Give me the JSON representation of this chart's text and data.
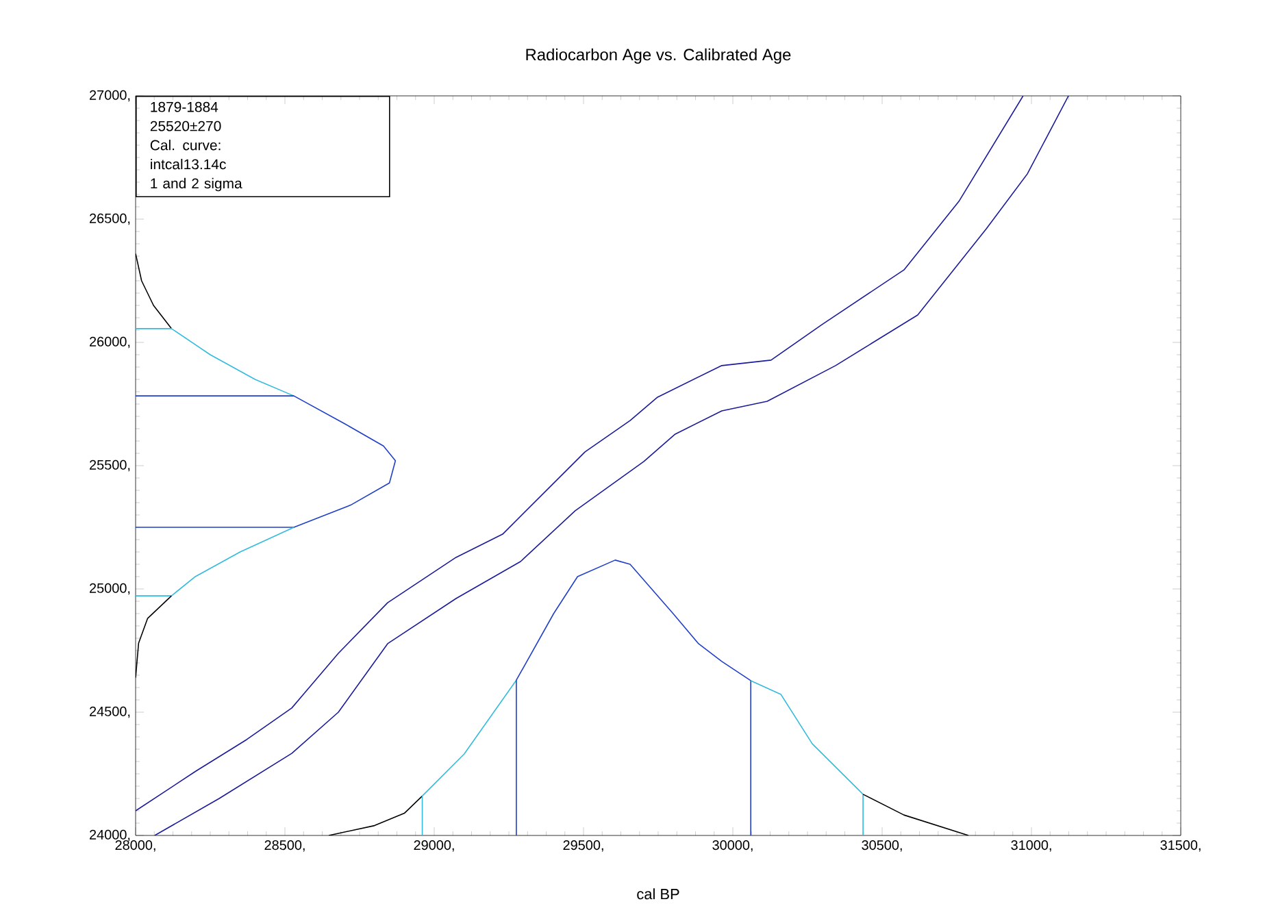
{
  "chart_data": {
    "type": "line",
    "title": "Radiocarbon Age vs. Calibrated Age",
    "xlabel": "cal BP",
    "annotations": [
      "1879-1884",
      "25520±270",
      "Cal. curve:",
      "intcal13.14c",
      "1 and 2 sigma"
    ],
    "xlim": [
      28000,
      31500
    ],
    "xticks": [
      {
        "value": 28000,
        "label": "28000,"
      },
      {
        "value": 28500,
        "label": "28500,"
      },
      {
        "value": 29000,
        "label": "29000,"
      },
      {
        "value": 29500,
        "label": "29500,"
      },
      {
        "value": 30000,
        "label": "30000,"
      },
      {
        "value": 30500,
        "label": "30500,"
      },
      {
        "value": 31000,
        "label": "31000,"
      },
      {
        "value": 31500,
        "label": "31500,"
      }
    ],
    "ylim": [
      24000,
      27000
    ],
    "yticks": [
      {
        "value": 24000,
        "label": "24000,"
      },
      {
        "value": 24500,
        "label": "24500,"
      },
      {
        "value": 25000,
        "label": "25000,"
      },
      {
        "value": 25500,
        "label": "25500,"
      },
      {
        "value": 26000,
        "label": "26000,"
      },
      {
        "value": 26500,
        "label": "26500,"
      },
      {
        "value": 27000,
        "label": "27000,"
      }
    ],
    "grid": false,
    "marker": "none",
    "line_style": "solid",
    "series": [
      {
        "color": "#1a1a9c",
        "x": [
          28000,
          28202,
          28372,
          28523,
          28679,
          28844,
          29073,
          29229,
          29505,
          29656,
          29748,
          29963,
          30128,
          30298,
          30573,
          30757,
          30972
        ],
        "values": [
          24100,
          24261,
          24389,
          24517,
          24739,
          24944,
          25128,
          25222,
          25556,
          25683,
          25778,
          25906,
          25928,
          26072,
          26294,
          26572,
          27000
        ]
      },
      {
        "color": "#1a1a9c",
        "x": [
          28064,
          28280,
          28523,
          28679,
          28844,
          29073,
          29289,
          29472,
          29702,
          29807,
          29963,
          30115,
          30344,
          30619,
          30849,
          30986,
          31124
        ],
        "values": [
          24000,
          24150,
          24333,
          24500,
          24778,
          24961,
          25111,
          25317,
          25517,
          25628,
          25722,
          25761,
          25906,
          26111,
          26461,
          26683,
          27000
        ]
      },
      {
        "color": "#000000",
        "x": [
          28000,
          28020,
          28060,
          28120
        ],
        "values": [
          26360,
          26250,
          26150,
          26056
        ]
      },
      {
        "color": "#33bbdd",
        "x": [
          28000,
          28120,
          28250,
          28400,
          28530
        ],
        "values": [
          26056,
          26056,
          25950,
          25850,
          25783
        ]
      },
      {
        "color": "#1f3fc8",
        "x": [
          28000,
          28530,
          28700,
          28830,
          28870,
          28850,
          28720,
          28530,
          28000
        ],
        "values": [
          25783,
          25783,
          25670,
          25580,
          25520,
          25430,
          25340,
          25250,
          25250
        ]
      },
      {
        "color": "#33bbdd",
        "x": [
          28530,
          28350,
          28200,
          28120,
          28000
        ],
        "values": [
          25250,
          25150,
          25050,
          24972,
          24972
        ]
      },
      {
        "color": "#000000",
        "x": [
          28120,
          28040,
          28010,
          28000
        ],
        "values": [
          24972,
          24880,
          24780,
          24640
        ]
      },
      {
        "color": "#000000",
        "x": [
          28647,
          28800,
          28900,
          28960
        ],
        "values": [
          24000,
          24040,
          24090,
          24160
        ]
      },
      {
        "color": "#33bbdd",
        "x": [
          28960,
          28960,
          29100,
          29275
        ],
        "values": [
          24000,
          24160,
          24330,
          24630
        ]
      },
      {
        "color": "#1f3fc8",
        "x": [
          29275,
          29275,
          29400,
          29480,
          29606,
          29656,
          29800,
          29885,
          29963,
          30060,
          30060
        ],
        "values": [
          24000,
          24630,
          24900,
          25050,
          25117,
          25100,
          24900,
          24778,
          24706,
          24628,
          24000
        ]
      },
      {
        "color": "#33bbdd",
        "x": [
          30060,
          30161,
          30266,
          30436,
          30436
        ],
        "values": [
          24628,
          24572,
          24372,
          24167,
          24000
        ]
      },
      {
        "color": "#000000",
        "x": [
          30436,
          30573,
          30789
        ],
        "values": [
          24167,
          24083,
          24000
        ]
      }
    ]
  }
}
